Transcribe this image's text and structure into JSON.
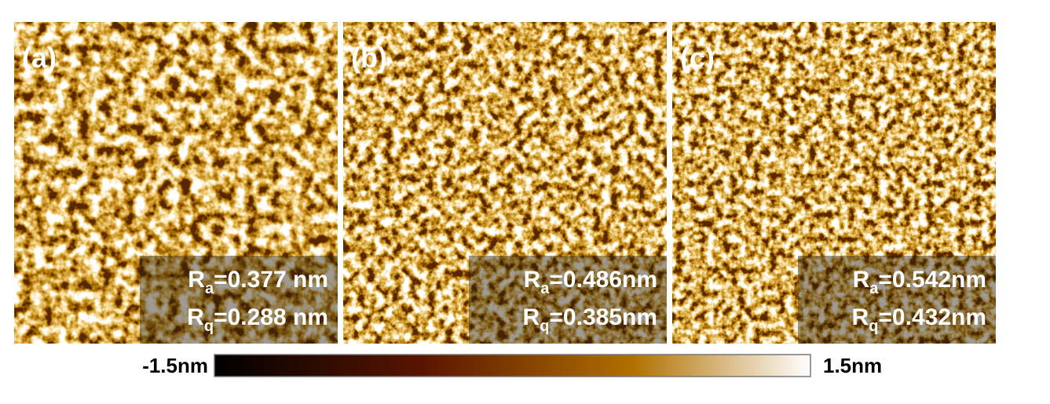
{
  "panels": [
    {
      "label": "(a)",
      "ra": {
        "symbol": "R",
        "sub": "a",
        "value": "=0.377 nm"
      },
      "rq": {
        "symbol": "R",
        "sub": "q",
        "value": "=0.288 nm"
      }
    },
    {
      "label": "(b)",
      "ra": {
        "symbol": "R",
        "sub": "a",
        "value": "=0.486nm"
      },
      "rq": {
        "symbol": "R",
        "sub": "q",
        "value": "=0.385nm"
      }
    },
    {
      "label": "(c)",
      "ra": {
        "symbol": "R",
        "sub": "a",
        "value": "=0.542nm"
      },
      "rq": {
        "symbol": "R",
        "sub": "q",
        "value": "=0.432nm"
      }
    }
  ],
  "colorbar": {
    "min_label": "-1.5nm",
    "max_label": "1.5nm"
  }
}
